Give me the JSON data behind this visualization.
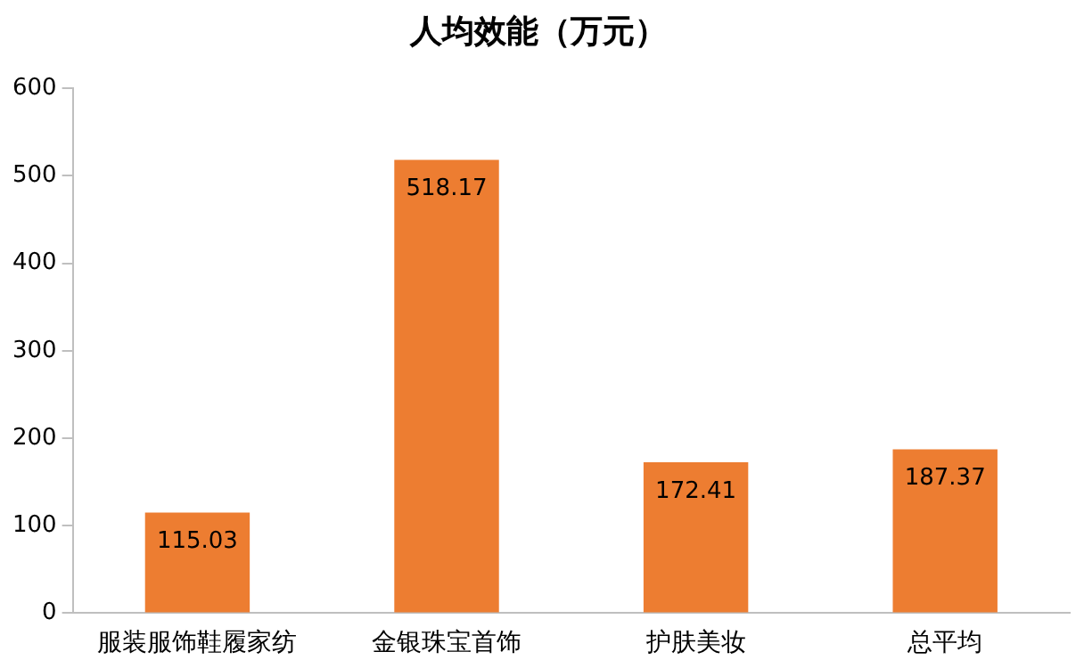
{
  "chart_data": {
    "type": "bar",
    "title": "人均效能（万元）",
    "categories": [
      "服装服饰鞋履家纺",
      "金银珠宝首饰",
      "护肤美妆",
      "总平均"
    ],
    "values": [
      115.03,
      518.17,
      172.41,
      187.37
    ],
    "color": "#ed7d31",
    "ylim": [
      0,
      600
    ],
    "yticks": [
      0,
      100,
      200,
      300,
      400,
      500,
      600
    ],
    "grid": false,
    "legend": false,
    "data_labels": true
  }
}
